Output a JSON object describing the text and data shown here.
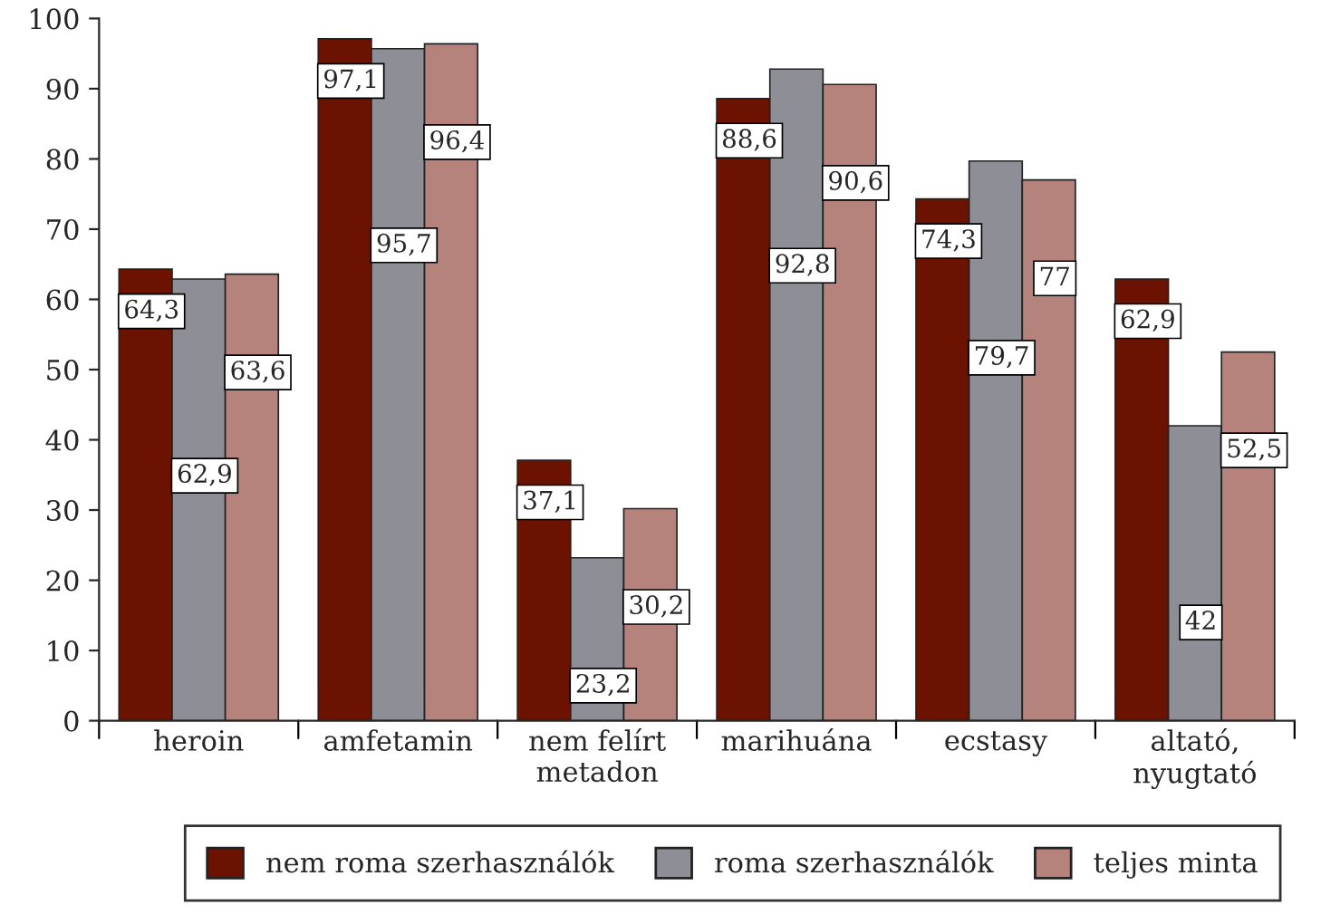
{
  "chart_data": {
    "type": "bar",
    "categories": [
      "heroin",
      "amfetamin",
      "nem felírt\nmetadon",
      "marihuána",
      "ecstasy",
      "altató,\nnyugtató"
    ],
    "series": [
      {
        "name": "nem roma szerhasználók",
        "color": "#6b1300",
        "values": [
          64.3,
          97.1,
          37.1,
          88.6,
          74.3,
          62.9
        ],
        "value_labels": [
          "64,3",
          "97,1",
          "37,1",
          "88,6",
          "74,3",
          "62,9"
        ]
      },
      {
        "name": "roma szerhasználók",
        "color": "#8e8e96",
        "values": [
          62.9,
          95.7,
          23.2,
          92.8,
          79.7,
          42
        ],
        "value_labels": [
          "62,9",
          "95,7",
          "23,2",
          "92,8",
          "79,7",
          "42"
        ]
      },
      {
        "name": "teljes minta",
        "color": "#b5837c",
        "values": [
          63.6,
          96.4,
          30.2,
          90.6,
          77,
          52.5
        ],
        "value_labels": [
          "63,6",
          "96,4",
          "30,2",
          "90,6",
          "77",
          "52,5"
        ]
      }
    ],
    "ylim": [
      0,
      100
    ],
    "yticks": [
      0,
      10,
      20,
      30,
      40,
      50,
      60,
      70,
      80,
      90,
      100
    ],
    "grid": false,
    "legend": "bottom"
  }
}
